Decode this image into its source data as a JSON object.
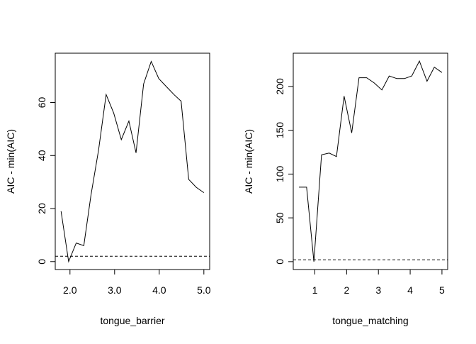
{
  "chart_data": [
    {
      "type": "line",
      "x_label": "tongue_barrier",
      "y_label": "AIC - min(AIC)",
      "x": [
        1.8,
        1.97,
        2.14,
        2.31,
        2.47,
        2.64,
        2.81,
        2.98,
        3.15,
        3.32,
        3.48,
        3.65,
        3.82,
        3.99,
        4.16,
        4.33,
        4.49,
        4.66,
        4.83,
        5.0
      ],
      "series": [
        {
          "color": "#000000",
          "values": [
            19,
            0,
            7,
            6,
            25,
            42,
            63,
            56,
            46,
            53,
            41,
            67,
            75.5,
            69,
            66,
            63,
            60.5,
            31,
            28,
            26
          ]
        }
      ],
      "xlim": [
        1.67,
        5.13
      ],
      "ylim": [
        -3,
        78.6
      ],
      "xticks": [
        {
          "value": 2,
          "label": "2.0"
        },
        {
          "value": 3,
          "label": "3.0"
        },
        {
          "value": 4,
          "label": "4.0"
        },
        {
          "value": 5,
          "label": "5.0"
        }
      ],
      "yticks": [
        0,
        20,
        40,
        60
      ],
      "reference_line": 2
    },
    {
      "type": "line",
      "x_label": "tongue_matching",
      "y_label": "AIC - min(AIC)",
      "x": [
        0.5,
        0.74,
        0.97,
        1.21,
        1.45,
        1.68,
        1.92,
        2.16,
        2.39,
        2.63,
        2.87,
        3.11,
        3.34,
        3.58,
        3.82,
        4.05,
        4.29,
        4.53,
        4.76,
        5.0
      ],
      "series": [
        {
          "color": "#000000",
          "values": [
            85,
            85,
            0,
            122,
            124,
            120,
            189,
            147,
            210,
            210,
            204,
            196,
            212,
            209,
            209,
            212,
            229,
            206,
            222,
            216
          ]
        }
      ],
      "xlim": [
        0.32,
        5.18
      ],
      "ylim": [
        -9,
        238
      ],
      "xticks": [
        1,
        2,
        3,
        4,
        5
      ],
      "yticks": [
        0,
        50,
        100,
        150,
        200
      ],
      "reference_line": 2
    }
  ]
}
